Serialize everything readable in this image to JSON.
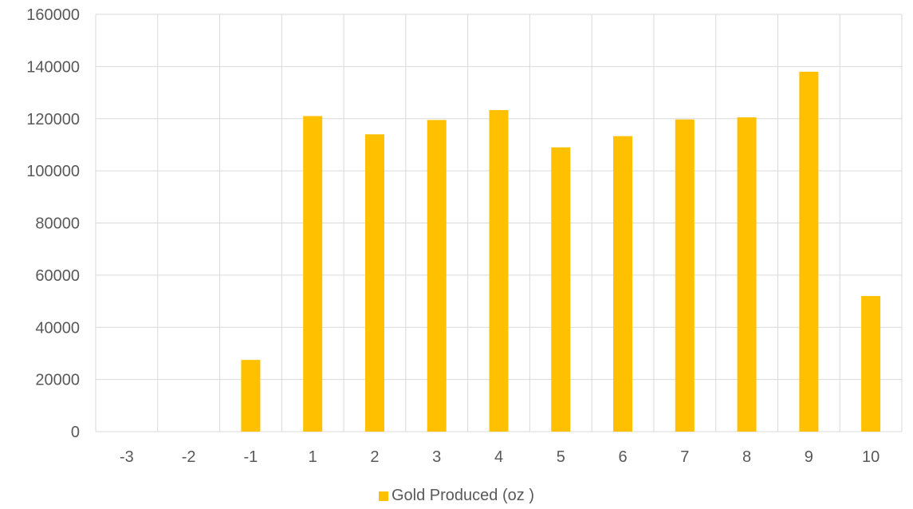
{
  "chart_data": {
    "type": "bar",
    "categories": [
      "-3",
      "-2",
      "-1",
      "1",
      "2",
      "3",
      "4",
      "5",
      "6",
      "7",
      "8",
      "9",
      "10"
    ],
    "series": [
      {
        "name": "Gold Produced (oz )",
        "values": [
          0,
          0,
          27500,
          121000,
          114000,
          119500,
          123300,
          109000,
          113300,
          119700,
          120500,
          138000,
          52000
        ],
        "color": "#ffc000"
      }
    ],
    "yticks": [
      "0",
      "20000",
      "40000",
      "60000",
      "80000",
      "100000",
      "120000",
      "140000",
      "160000"
    ],
    "ylim": [
      0,
      160000
    ],
    "grid": true,
    "legend_position": "bottom"
  }
}
